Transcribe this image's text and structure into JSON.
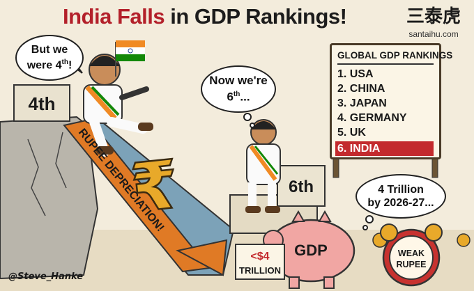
{
  "title": {
    "part1": "India Falls",
    "part2": " in GDP Rankings!"
  },
  "brand": {
    "cjk": "三泰虎",
    "site": "santaihu.com"
  },
  "bubbles": {
    "left_line1": "But we",
    "left_line2": "were 4",
    "left_sup": "th",
    "left_end": "!",
    "middle_line1": "Now we're",
    "middle_line2": "6",
    "middle_sup": "th",
    "middle_end": "...",
    "right_line1": "4 Trillion",
    "right_line2": "by 2026-27..."
  },
  "steps": {
    "left": "4th",
    "right": "6th"
  },
  "slide_label": "RUPEE DEPRECIATION!",
  "rupee_symbol": "₹",
  "board": {
    "title": "GLOBAL GDP RANKINGS",
    "ranks": [
      "1. USA",
      "2. CHINA",
      "3. JAPAN",
      "4. GERMANY",
      "5. UK",
      "6. INDIA"
    ]
  },
  "piggy": {
    "label": "GDP"
  },
  "trillion_sign": {
    "line1": "<$4",
    "line2": "TRILLION"
  },
  "clock": {
    "line1": "WEAK",
    "line2": "RUPEE"
  },
  "credit": "@Steve_Hanke",
  "colors": {
    "title_red": "#b3202a",
    "highlight_red": "#c32a2d",
    "saffron": "#f08a24",
    "india_green": "#138808",
    "slide_orange": "#e07a25",
    "piggy_pink": "#f1a6a3"
  }
}
